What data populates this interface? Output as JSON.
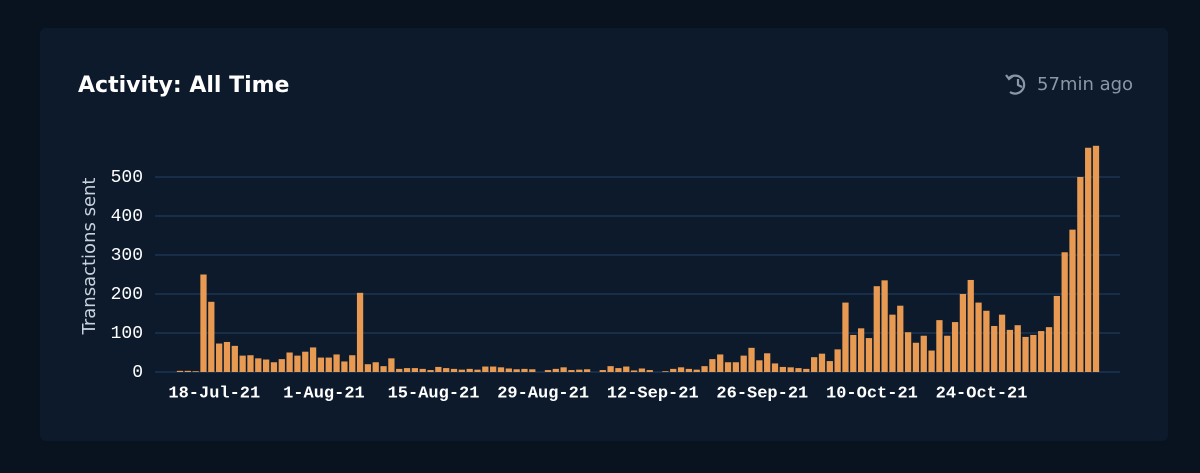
{
  "status": "57min ago",
  "chart_data": {
    "type": "bar",
    "title": "Activity: All Time",
    "y_label": "Transactions sent",
    "categories": [
      null,
      null,
      null,
      null,
      "18-Jul-21",
      null,
      null,
      null,
      null,
      null,
      null,
      null,
      null,
      null,
      null,
      null,
      null,
      null,
      "1-Aug-21",
      null,
      null,
      null,
      null,
      null,
      null,
      null,
      null,
      null,
      null,
      null,
      null,
      null,
      "15-Aug-21",
      null,
      null,
      null,
      null,
      null,
      null,
      null,
      null,
      null,
      null,
      null,
      null,
      null,
      "29-Aug-21",
      null,
      null,
      null,
      null,
      null,
      null,
      null,
      null,
      null,
      null,
      null,
      null,
      null,
      "12-Sep-21",
      null,
      null,
      null,
      null,
      null,
      null,
      null,
      null,
      null,
      null,
      null,
      null,
      null,
      "26-Sep-21",
      null,
      null,
      null,
      null,
      null,
      null,
      null,
      null,
      null,
      null,
      null,
      null,
      null,
      "10-Oct-21",
      null,
      null,
      null,
      null,
      null,
      null,
      null,
      null,
      null,
      null,
      null,
      null,
      null,
      "24-Oct-21",
      null,
      null,
      null,
      null,
      null,
      null,
      null,
      null,
      null,
      null,
      null,
      null,
      null,
      null,
      null
    ],
    "values": [
      3,
      3,
      2,
      250,
      180,
      73,
      77,
      67,
      42,
      43,
      35,
      32,
      25,
      33,
      50,
      42,
      52,
      63,
      37,
      37,
      45,
      27,
      43,
      203,
      20,
      25,
      15,
      35,
      8,
      10,
      10,
      8,
      5,
      13,
      10,
      8,
      6,
      8,
      6,
      14,
      14,
      12,
      9,
      7,
      8,
      7,
      0,
      5,
      8,
      12,
      5,
      6,
      7,
      0,
      5,
      15,
      10,
      14,
      4,
      9,
      5,
      0,
      2,
      8,
      12,
      8,
      6,
      15,
      33,
      45,
      25,
      25,
      42,
      62,
      30,
      48,
      22,
      13,
      12,
      10,
      8,
      38,
      47,
      28,
      58,
      178,
      95,
      112,
      87,
      220,
      235,
      147,
      170,
      102,
      75,
      93,
      55,
      133,
      93,
      128,
      200,
      236,
      178,
      157,
      118,
      147,
      108,
      120,
      90,
      95,
      105,
      115,
      195,
      307,
      365,
      500,
      575,
      580
    ],
    "color": "#e89a52",
    "ylim": [
      0,
      600
    ],
    "yticks": [
      0,
      100,
      200,
      300,
      400,
      500
    ],
    "grid": true
  }
}
